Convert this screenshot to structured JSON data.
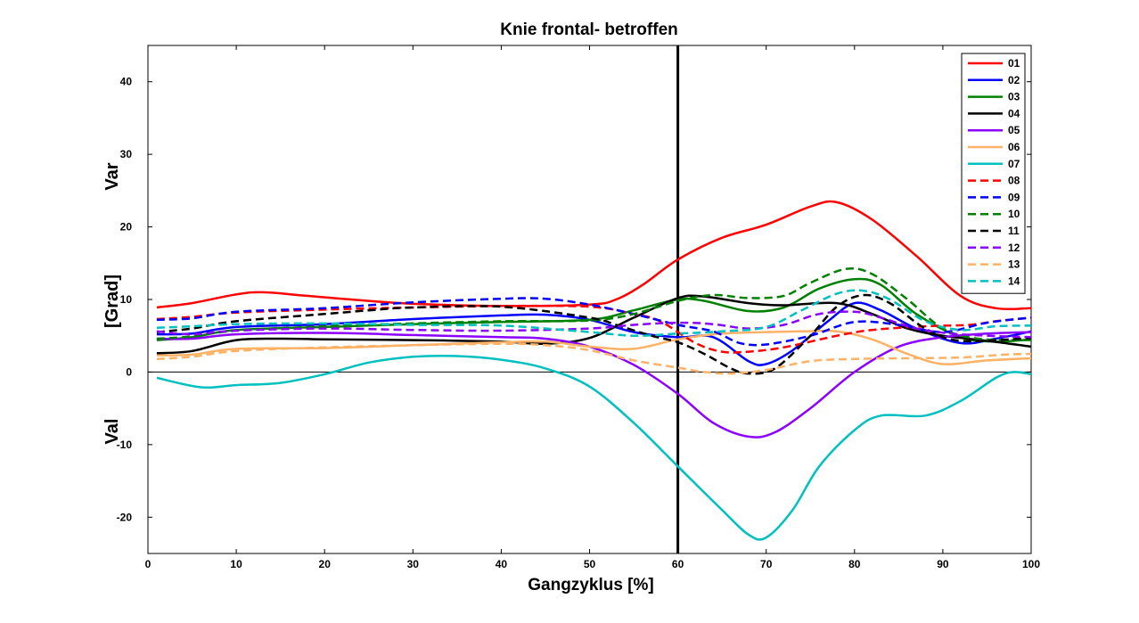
{
  "chart_data": {
    "type": "line",
    "title": "Knie frontal- betroffen",
    "xlabel": "Gangzyklus [%]",
    "ylabel_labels": {
      "top": "Var",
      "middle": "[Grad]",
      "bottom": "Val"
    },
    "xlim": [
      0,
      100
    ],
    "ylim": [
      -25,
      45
    ],
    "xticks": [
      0,
      10,
      20,
      30,
      40,
      50,
      60,
      70,
      80,
      90,
      100
    ],
    "yticks": [
      -20,
      -10,
      0,
      10,
      20,
      30,
      40
    ],
    "grid": false,
    "legend_position": "top-right",
    "reference_lines": {
      "vertical_x": 60,
      "horizontal_y": 0
    },
    "series": [
      {
        "name": "01",
        "color": "#ff0000",
        "dash": "solid",
        "points": [
          [
            1,
            8.9
          ],
          [
            5,
            9.5
          ],
          [
            10,
            10.7
          ],
          [
            13,
            11
          ],
          [
            18,
            10.5
          ],
          [
            25,
            9.8
          ],
          [
            30,
            9.4
          ],
          [
            40,
            9.1
          ],
          [
            50,
            9.3
          ],
          [
            53,
            10
          ],
          [
            56,
            12
          ],
          [
            60,
            15.5
          ],
          [
            65,
            18.5
          ],
          [
            70,
            20.3
          ],
          [
            75,
            22.8
          ],
          [
            78,
            23.4
          ],
          [
            82,
            21
          ],
          [
            87,
            16
          ],
          [
            92,
            10.5
          ],
          [
            96,
            8.8
          ],
          [
            100,
            8.8
          ]
        ]
      },
      {
        "name": "02",
        "color": "#0000ff",
        "dash": "solid",
        "points": [
          [
            1,
            5.2
          ],
          [
            5,
            5.3
          ],
          [
            10,
            6.2
          ],
          [
            20,
            6.6
          ],
          [
            30,
            7.3
          ],
          [
            40,
            7.8
          ],
          [
            45,
            7.9
          ],
          [
            50,
            7.2
          ],
          [
            55,
            5.5
          ],
          [
            60,
            4.8
          ],
          [
            64,
            4.8
          ],
          [
            68,
            1.5
          ],
          [
            70,
            1.1
          ],
          [
            73,
            3
          ],
          [
            77,
            7
          ],
          [
            80,
            9.5
          ],
          [
            83,
            8.5
          ],
          [
            87,
            6
          ],
          [
            92,
            4
          ],
          [
            96,
            4.6
          ],
          [
            100,
            5.6
          ]
        ]
      },
      {
        "name": "03",
        "color": "#008000",
        "dash": "solid",
        "points": [
          [
            1,
            4.4
          ],
          [
            5,
            4.8
          ],
          [
            10,
            5.8
          ],
          [
            20,
            6.2
          ],
          [
            30,
            6.6
          ],
          [
            40,
            6.9
          ],
          [
            50,
            7.2
          ],
          [
            55,
            8.5
          ],
          [
            60,
            10
          ],
          [
            63,
            9.8
          ],
          [
            68,
            8.4
          ],
          [
            72,
            8.9
          ],
          [
            76,
            11.5
          ],
          [
            80,
            12.8
          ],
          [
            83,
            12
          ],
          [
            87,
            8
          ],
          [
            92,
            4.8
          ],
          [
            96,
            4.2
          ],
          [
            100,
            4.5
          ]
        ]
      },
      {
        "name": "04",
        "color": "#000000",
        "dash": "solid",
        "points": [
          [
            1,
            2.6
          ],
          [
            5,
            2.9
          ],
          [
            10,
            4.4
          ],
          [
            15,
            4.6
          ],
          [
            20,
            4.5
          ],
          [
            30,
            4.4
          ],
          [
            40,
            4.2
          ],
          [
            45,
            3.9
          ],
          [
            50,
            4.7
          ],
          [
            55,
            7.5
          ],
          [
            60,
            10.2
          ],
          [
            63,
            10.4
          ],
          [
            68,
            9.5
          ],
          [
            72,
            9.2
          ],
          [
            78,
            9.5
          ],
          [
            82,
            8
          ],
          [
            86,
            6
          ],
          [
            90,
            5
          ],
          [
            95,
            4.3
          ],
          [
            100,
            3.5
          ]
        ]
      },
      {
        "name": "05",
        "color": "#8b00ff",
        "dash": "solid",
        "points": [
          [
            1,
            4.6
          ],
          [
            5,
            4.6
          ],
          [
            10,
            5.2
          ],
          [
            20,
            5.4
          ],
          [
            30,
            5.1
          ],
          [
            40,
            4.8
          ],
          [
            45,
            4.6
          ],
          [
            50,
            3.5
          ],
          [
            55,
            1
          ],
          [
            60,
            -3
          ],
          [
            64,
            -7
          ],
          [
            68,
            -8.9
          ],
          [
            71,
            -8.3
          ],
          [
            75,
            -5
          ],
          [
            80,
            0
          ],
          [
            85,
            3.5
          ],
          [
            90,
            4.8
          ],
          [
            95,
            5.3
          ],
          [
            100,
            5.5
          ]
        ]
      },
      {
        "name": "06",
        "color": "#ffb266",
        "dash": "solid",
        "points": [
          [
            1,
            2.3
          ],
          [
            5,
            2.4
          ],
          [
            10,
            3.2
          ],
          [
            20,
            3.3
          ],
          [
            30,
            3.7
          ],
          [
            40,
            4.1
          ],
          [
            45,
            4.2
          ],
          [
            50,
            3.5
          ],
          [
            55,
            3.2
          ],
          [
            60,
            4.5
          ],
          [
            65,
            5.3
          ],
          [
            70,
            5.5
          ],
          [
            74,
            5.6
          ],
          [
            78,
            5.6
          ],
          [
            82,
            4.5
          ],
          [
            86,
            2.5
          ],
          [
            90,
            1.1
          ],
          [
            95,
            1.6
          ],
          [
            100,
            1.9
          ]
        ]
      },
      {
        "name": "07",
        "color": "#00c0c0",
        "dash": "solid",
        "points": [
          [
            1,
            -0.8
          ],
          [
            6,
            -2.1
          ],
          [
            10,
            -1.8
          ],
          [
            15,
            -1.5
          ],
          [
            20,
            -0.3
          ],
          [
            25,
            1.3
          ],
          [
            30,
            2.1
          ],
          [
            35,
            2.2
          ],
          [
            40,
            1.7
          ],
          [
            45,
            0.5
          ],
          [
            50,
            -2
          ],
          [
            55,
            -7
          ],
          [
            60,
            -13
          ],
          [
            65,
            -19
          ],
          [
            68,
            -22.4
          ],
          [
            70,
            -22.8
          ],
          [
            73,
            -19
          ],
          [
            76,
            -13
          ],
          [
            80,
            -8
          ],
          [
            83,
            -6
          ],
          [
            88,
            -6
          ],
          [
            92,
            -4
          ],
          [
            96,
            -0.8
          ],
          [
            98,
            0
          ],
          [
            100,
            -0.3
          ]
        ]
      },
      {
        "name": "08",
        "color": "#ff0000",
        "dash": "dashed",
        "points": [
          [
            1,
            7.3
          ],
          [
            5,
            7.6
          ],
          [
            10,
            8.2
          ],
          [
            20,
            8.6
          ],
          [
            30,
            8.9
          ],
          [
            40,
            9.1
          ],
          [
            50,
            9
          ],
          [
            55,
            8
          ],
          [
            58,
            7
          ],
          [
            62,
            4
          ],
          [
            65,
            2.8
          ],
          [
            68,
            2.8
          ],
          [
            72,
            3.4
          ],
          [
            78,
            5
          ],
          [
            82,
            5.8
          ],
          [
            88,
            6.3
          ],
          [
            93,
            6.5
          ],
          [
            96,
            7
          ],
          [
            100,
            7.5
          ]
        ]
      },
      {
        "name": "09",
        "color": "#0000ff",
        "dash": "dashed",
        "points": [
          [
            1,
            7.2
          ],
          [
            5,
            7.4
          ],
          [
            10,
            8.3
          ],
          [
            20,
            8.8
          ],
          [
            30,
            9.6
          ],
          [
            40,
            10.1
          ],
          [
            45,
            10.1
          ],
          [
            50,
            9.3
          ],
          [
            55,
            8
          ],
          [
            60,
            6.5
          ],
          [
            64,
            5.6
          ],
          [
            67,
            4
          ],
          [
            70,
            3.8
          ],
          [
            75,
            5
          ],
          [
            80,
            6.9
          ],
          [
            85,
            6.5
          ],
          [
            90,
            5.5
          ],
          [
            95,
            6.8
          ],
          [
            100,
            7.5
          ]
        ]
      },
      {
        "name": "10",
        "color": "#008000",
        "dash": "dashed",
        "points": [
          [
            1,
            4.6
          ],
          [
            5,
            4.9
          ],
          [
            10,
            5.7
          ],
          [
            20,
            6.3
          ],
          [
            30,
            6.7
          ],
          [
            40,
            7
          ],
          [
            50,
            7.1
          ],
          [
            55,
            8
          ],
          [
            60,
            9.8
          ],
          [
            64,
            10.6
          ],
          [
            68,
            10.2
          ],
          [
            72,
            10.5
          ],
          [
            75,
            12.3
          ],
          [
            79,
            14.2
          ],
          [
            82,
            13.5
          ],
          [
            86,
            10
          ],
          [
            90,
            6
          ],
          [
            94,
            4.6
          ],
          [
            100,
            4.4
          ]
        ]
      },
      {
        "name": "11",
        "color": "#000000",
        "dash": "dashed",
        "points": [
          [
            1,
            5.5
          ],
          [
            5,
            6
          ],
          [
            10,
            7
          ],
          [
            20,
            8
          ],
          [
            25,
            8.5
          ],
          [
            30,
            8.9
          ],
          [
            40,
            9
          ],
          [
            50,
            7.5
          ],
          [
            53,
            6.5
          ],
          [
            57,
            5
          ],
          [
            60,
            4.1
          ],
          [
            63,
            2.5
          ],
          [
            66,
            0.5
          ],
          [
            68,
            -0.2
          ],
          [
            71,
            0.5
          ],
          [
            75,
            5
          ],
          [
            78,
            9
          ],
          [
            81,
            10.6
          ],
          [
            84,
            9.5
          ],
          [
            88,
            6
          ],
          [
            92,
            4.3
          ],
          [
            100,
            4.7
          ]
        ]
      },
      {
        "name": "12",
        "color": "#8b00ff",
        "dash": "dashed",
        "points": [
          [
            1,
            5.6
          ],
          [
            5,
            5.2
          ],
          [
            10,
            5.7
          ],
          [
            20,
            6
          ],
          [
            30,
            5.8
          ],
          [
            40,
            5.7
          ],
          [
            50,
            6
          ],
          [
            55,
            6.5
          ],
          [
            60,
            6.8
          ],
          [
            64,
            6.6
          ],
          [
            68,
            6
          ],
          [
            72,
            6.5
          ],
          [
            76,
            8
          ],
          [
            80,
            8.3
          ],
          [
            83,
            7.5
          ],
          [
            87,
            6
          ],
          [
            92,
            5.2
          ],
          [
            100,
            4.8
          ]
        ]
      },
      {
        "name": "13",
        "color": "#ffb266",
        "dash": "dashed",
        "points": [
          [
            1,
            1.8
          ],
          [
            5,
            2.1
          ],
          [
            10,
            2.9
          ],
          [
            20,
            3.4
          ],
          [
            30,
            3.7
          ],
          [
            40,
            3.9
          ],
          [
            45,
            3.7
          ],
          [
            50,
            3
          ],
          [
            55,
            1.6
          ],
          [
            60,
            0.6
          ],
          [
            63,
            0
          ],
          [
            66,
            -0.2
          ],
          [
            70,
            0.3
          ],
          [
            75,
            1.5
          ],
          [
            80,
            1.8
          ],
          [
            86,
            1.9
          ],
          [
            92,
            2
          ],
          [
            97,
            2.4
          ],
          [
            100,
            2.5
          ]
        ]
      },
      {
        "name": "14",
        "color": "#00c0c0",
        "dash": "dashed",
        "points": [
          [
            1,
            6.1
          ],
          [
            5,
            6.3
          ],
          [
            10,
            6.6
          ],
          [
            20,
            6.7
          ],
          [
            30,
            6.5
          ],
          [
            40,
            6.4
          ],
          [
            50,
            5.5
          ],
          [
            55,
            5
          ],
          [
            60,
            5.3
          ],
          [
            65,
            5.6
          ],
          [
            70,
            6.2
          ],
          [
            74,
            8.5
          ],
          [
            78,
            10.8
          ],
          [
            81,
            11.2
          ],
          [
            84,
            10
          ],
          [
            88,
            7
          ],
          [
            92,
            5.8
          ],
          [
            96,
            6.3
          ],
          [
            100,
            6.4
          ]
        ]
      }
    ]
  }
}
